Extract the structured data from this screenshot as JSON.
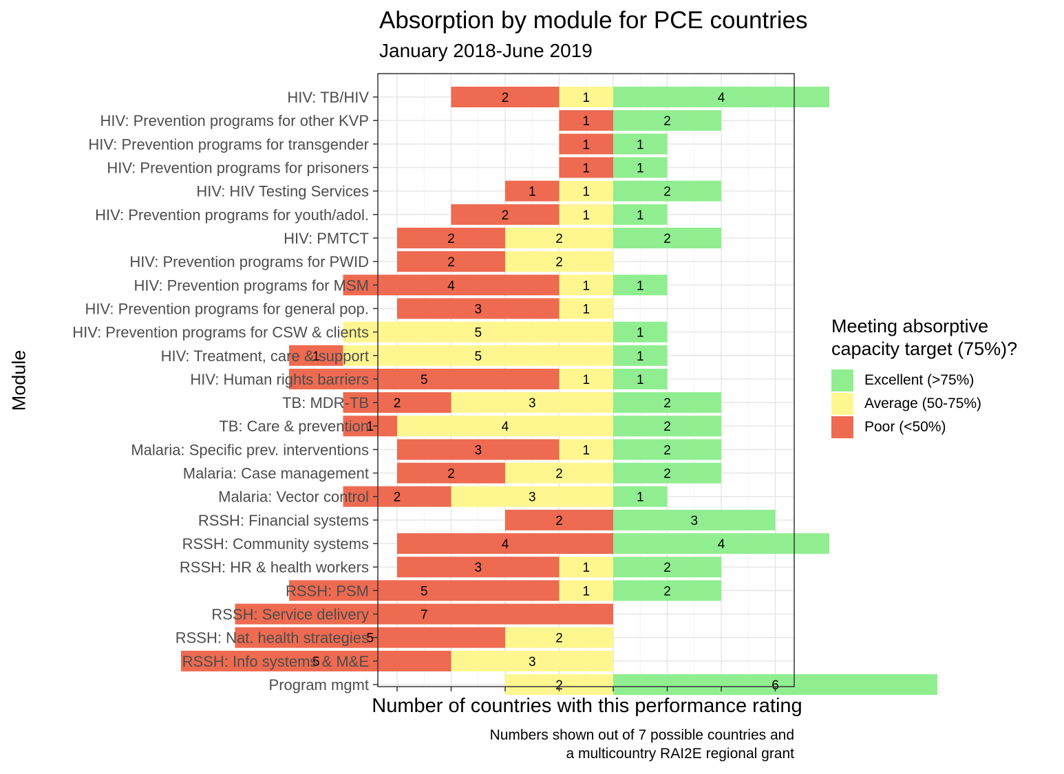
{
  "chart_data": {
    "type": "bar",
    "orientation": "horizontal-diverging",
    "title": "Absorption by module for PCE countries",
    "subtitle": "January 2018-June 2019",
    "xlabel": "Number of countries with this performance rating",
    "ylabel": "Module",
    "caption": [
      "Numbers shown out of 7 possible countries and",
      "a multicountry RAI2E regional grant"
    ],
    "grid": true,
    "legend_position": "right",
    "legend_title": [
      "Meeting absorptive",
      "capacity target (75%)?"
    ],
    "colors": {
      "excellent": "#90EE90",
      "average": "#FFF68F",
      "poor": "#EE6A50"
    },
    "series": [
      {
        "key": "excellent",
        "name": "Excellent (>75%)",
        "side": "right"
      },
      {
        "key": "average",
        "name": "Average (50-75%)",
        "side": "left"
      },
      {
        "key": "poor",
        "name": "Poor (<50%)",
        "side": "left"
      }
    ],
    "categories": [
      {
        "label": "HIV: TB/HIV",
        "poor": 2,
        "average": 1,
        "excellent": 4
      },
      {
        "label": "HIV: Prevention programs for other KVP",
        "poor": 1,
        "average": 0,
        "excellent": 2
      },
      {
        "label": "HIV: Prevention programs for transgender",
        "poor": 1,
        "average": 0,
        "excellent": 1
      },
      {
        "label": "HIV: Prevention programs for prisoners",
        "poor": 1,
        "average": 0,
        "excellent": 1
      },
      {
        "label": "HIV: HIV Testing Services",
        "poor": 1,
        "average": 1,
        "excellent": 2
      },
      {
        "label": "HIV: Prevention programs for youth/adol.",
        "poor": 2,
        "average": 1,
        "excellent": 1
      },
      {
        "label": "HIV: PMTCT",
        "poor": 2,
        "average": 2,
        "excellent": 2
      },
      {
        "label": "HIV: Prevention programs for PWID",
        "poor": 2,
        "average": 2,
        "excellent": 0
      },
      {
        "label": "HIV: Prevention programs for MSM",
        "poor": 4,
        "average": 1,
        "excellent": 1
      },
      {
        "label": "HIV: Prevention programs for general pop.",
        "poor": 3,
        "average": 1,
        "excellent": 0
      },
      {
        "label": "HIV: Prevention programs for CSW & clients",
        "poor": 0,
        "average": 5,
        "excellent": 1
      },
      {
        "label": "HIV: Treatment, care & support",
        "poor": 1,
        "average": 5,
        "excellent": 1
      },
      {
        "label": "HIV: Human rights barriers",
        "poor": 5,
        "average": 1,
        "excellent": 1
      },
      {
        "label": "TB: MDR-TB",
        "poor": 2,
        "average": 3,
        "excellent": 2
      },
      {
        "label": "TB: Care & prevention",
        "poor": 1,
        "average": 4,
        "excellent": 2
      },
      {
        "label": "Malaria: Specific prev. interventions",
        "poor": 3,
        "average": 1,
        "excellent": 2
      },
      {
        "label": "Malaria: Case management",
        "poor": 2,
        "average": 2,
        "excellent": 2
      },
      {
        "label": "Malaria: Vector control",
        "poor": 2,
        "average": 3,
        "excellent": 1
      },
      {
        "label": "RSSH: Financial systems",
        "poor": 2,
        "average": 0,
        "excellent": 3
      },
      {
        "label": "RSSH: Community systems",
        "poor": 4,
        "average": 0,
        "excellent": 4
      },
      {
        "label": "RSSH: HR & health workers",
        "poor": 3,
        "average": 1,
        "excellent": 2
      },
      {
        "label": "RSSH: PSM",
        "poor": 5,
        "average": 1,
        "excellent": 2
      },
      {
        "label": "RSSH: Service delivery",
        "poor": 7,
        "average": 0,
        "excellent": 0
      },
      {
        "label": "RSSH: Nat. health strategies",
        "poor": 5,
        "average": 2,
        "excellent": 0
      },
      {
        "label": "RSSH: Info systems & M&E",
        "poor": 5,
        "average": 3,
        "excellent": 0
      },
      {
        "label": "Program mgmt",
        "poor": 0,
        "average": 2,
        "excellent": 6
      }
    ]
  }
}
